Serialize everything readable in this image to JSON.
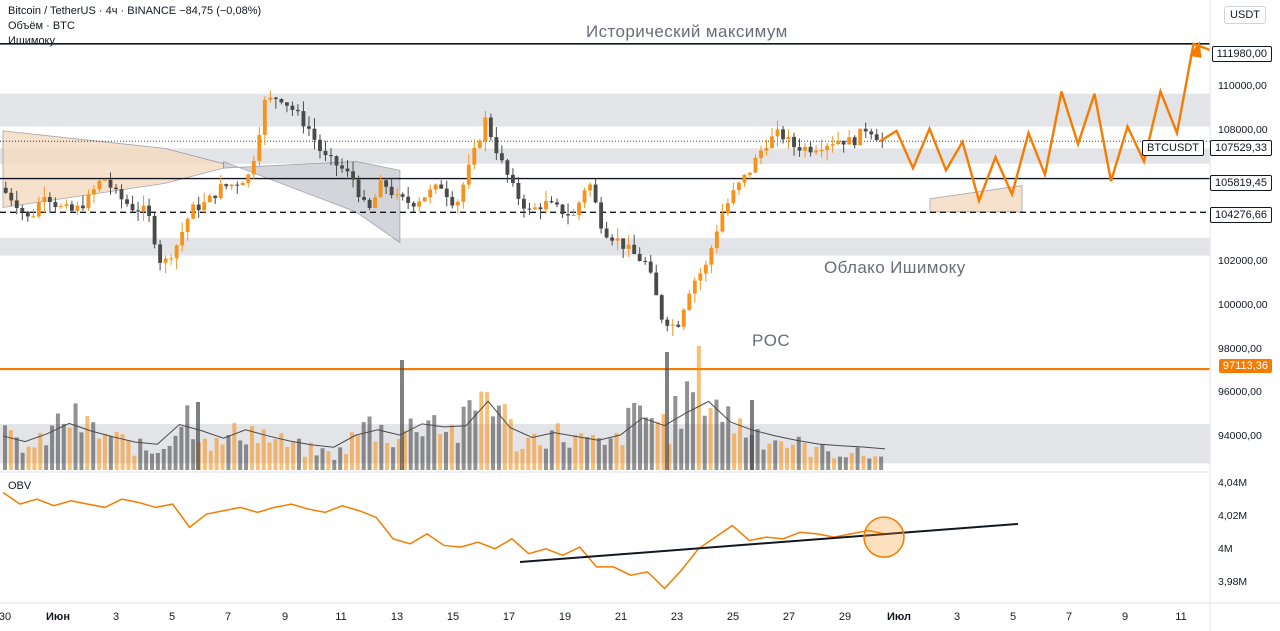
{
  "legend": {
    "symbol": "Bitcoin / TetherUS · 4ч · BINANCE",
    "change": "−84,75 (−0,08%)",
    "volume": "Объём · BTC",
    "indicator": "Ишимоку"
  },
  "currency_button": "USDT",
  "annotations": {
    "ath": "Исторический максимум",
    "cloud": "Облако Ишимоку",
    "poc": "POC"
  },
  "price_pills": {
    "ath": "111980,00",
    "current_symbol": "BTCUSDT",
    "current": "107529,33",
    "level_1": "105819,45",
    "level_2": "104276,66",
    "poc": "97113,36"
  },
  "price_axis": [
    "110000,00",
    "108000,00",
    "102000,00",
    "100000,00",
    "98000,00",
    "96000,00",
    "94000,00"
  ],
  "obv_label": "OBV",
  "obv_axis": [
    "4,04M",
    "4,02M",
    "4M",
    "3,98M"
  ],
  "time_axis": [
    "30",
    "Июн",
    "3",
    "5",
    "7",
    "9",
    "11",
    "13",
    "15",
    "17",
    "19",
    "21",
    "23",
    "25",
    "27",
    "29",
    "Июл",
    "3",
    "5",
    "7",
    "9",
    "11"
  ],
  "colors": {
    "up": "#f7931a",
    "down": "#4a4a4a",
    "accent": "#f57c00",
    "zone": "#d9dbe0",
    "cloud_bull": "#f5dcc0",
    "cloud_bear": "#c9cbd1"
  },
  "chart_data": [
    {
      "type": "candlestick",
      "symbol": "BTCUSDT",
      "timeframe": "4h",
      "xlabels": [
        "30",
        "Июн",
        "3",
        "5",
        "7",
        "9",
        "11",
        "13",
        "15",
        "17",
        "19",
        "21",
        "23",
        "25",
        "27",
        "29",
        "Июл",
        "3",
        "5",
        "7",
        "9",
        "11"
      ],
      "ylim": [
        92500,
        113800
      ],
      "levels": {
        "all_time_high": 111980,
        "current_price": 107529.33,
        "support_1": 105819.45,
        "support_2": 104276.66,
        "poc": 97113.36
      },
      "zones": [
        [
          108200,
          109700
        ],
        [
          106500,
          107200
        ],
        [
          102300,
          103100
        ],
        [
          92800,
          94600
        ]
      ],
      "close_path": [
        105400,
        104800,
        103900,
        105200,
        104500,
        104300,
        104900,
        105900,
        105000,
        104500,
        104300,
        101800,
        102800,
        104400,
        104700,
        105400,
        105600,
        106000,
        109300,
        109600,
        108900,
        108100,
        106800,
        106400,
        105800,
        104200,
        105700,
        104900,
        104700,
        105100,
        105500,
        104600,
        106500,
        108500,
        106700,
        105200,
        104300,
        104700,
        104400,
        104100,
        105800,
        103500,
        103000,
        102400,
        101900,
        99500,
        99000,
        101000,
        101800,
        104100,
        105300,
        106200,
        107400,
        107900,
        107300,
        107200,
        107400,
        107600,
        107500,
        108200,
        107529
      ],
      "projection": [
        107529,
        108000,
        106300,
        108100,
        106200,
        107500,
        104800,
        106800,
        105100,
        107900,
        106000,
        109800,
        107400,
        109700,
        105700,
        108200,
        106600,
        109800,
        107900,
        111980,
        111700
      ],
      "cloud_bull": [
        [
          0,
          108000,
          104500
        ],
        [
          11,
          107200,
          105600
        ],
        [
          15,
          106500,
          106300
        ]
      ],
      "cloud_bear": [
        [
          15,
          106300,
          106600
        ],
        [
          24,
          106600,
          104300
        ],
        [
          27,
          106200,
          102900
        ]
      ]
    },
    {
      "type": "bar",
      "name": "Объём",
      "values": [
        34,
        22,
        56,
        40,
        28,
        18,
        60,
        26,
        44,
        30,
        21,
        16,
        48,
        34,
        58,
        38,
        90,
        26,
        40,
        32,
        24,
        62,
        46,
        96,
        52,
        38,
        28,
        20,
        18,
        14
      ]
    },
    {
      "type": "line",
      "name": "OBV",
      "yticks": [
        "4,04M",
        "4,02M",
        "4M",
        "3,98M"
      ],
      "ylim": [
        3.97,
        4.045
      ],
      "values": [
        4.035,
        4.028,
        4.031,
        4.027,
        4.03,
        4.028,
        4.026,
        4.031,
        4.029,
        4.026,
        4.028,
        4.014,
        4.022,
        4.024,
        4.026,
        4.023,
        4.026,
        4.028,
        4.025,
        4.023,
        4.027,
        4.024,
        4.02,
        4.007,
        4.004,
        4.01,
        4.003,
        4.002,
        4.005,
        4.001,
        4.007,
        3.998,
        4.001,
        3.997,
        4.002,
        3.99,
        3.99,
        3.985,
        3.987,
        3.977,
        3.988,
        4.001,
        4.008,
        4.015,
        4.006,
        4.008,
        4.007,
        4.011,
        4.01,
        4.008,
        4.01,
        4.012,
        4.01
      ],
      "trendline": [
        3.993,
        4.016
      ]
    }
  ]
}
